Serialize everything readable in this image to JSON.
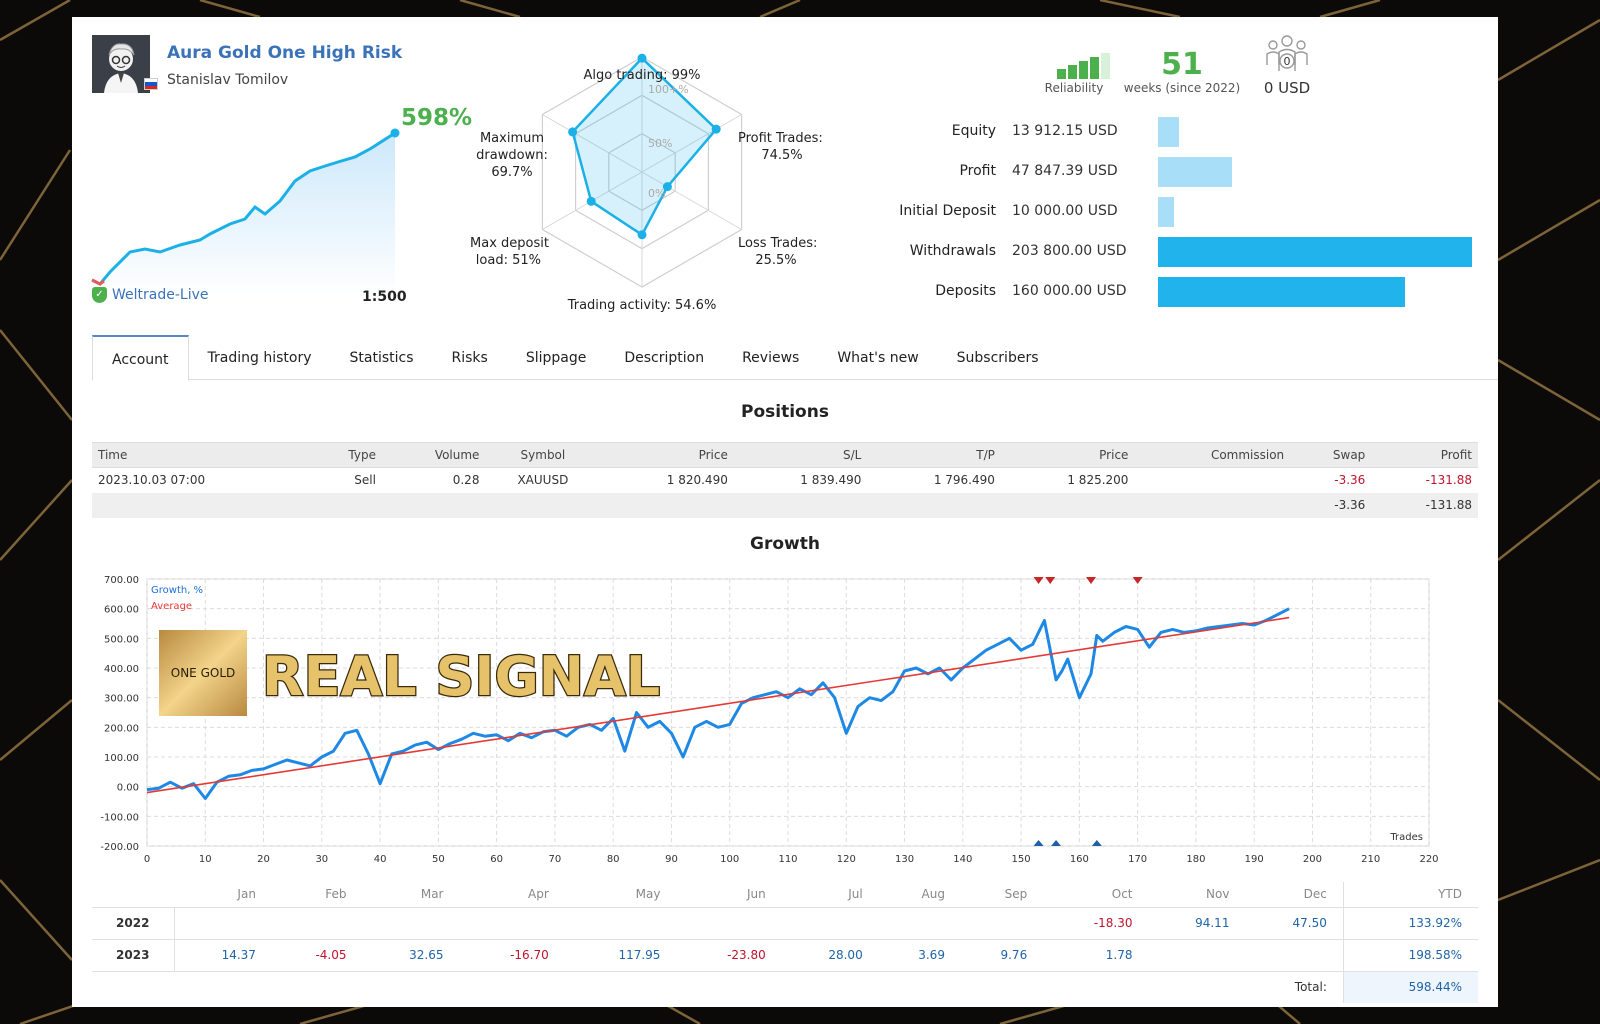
{
  "signal": {
    "name": "Aura Gold One High Risk",
    "author": "Stanislav Tomilov",
    "growth": "598%",
    "broker": "Weltrade-Live",
    "leverage": "1:500",
    "avatar_icon": "cartoon-avatar-icon",
    "flag_icon": "russia-flag-icon",
    "verified_icon": "shield-check-icon"
  },
  "radar": {
    "labels": {
      "algo": "Algo trading: 99%",
      "profit_l1": "Profit Trades:",
      "profit_l2": "74.5%",
      "loss_l1": "Loss Trades:",
      "loss_l2": "25.5%",
      "activity": "Trading activity: 54.6%",
      "load_l1": "Max deposit",
      "load_l2": "load: 51%",
      "dd_l1": "Maximum",
      "dd_l2": "drawdown:",
      "dd_l3": "69.7%"
    },
    "scale": {
      "full": "100+%",
      "half": "50%",
      "zero": "0%"
    },
    "values": [
      0.99,
      0.745,
      0.255,
      0.546,
      0.51,
      0.697
    ],
    "color": "#1bb0e8"
  },
  "reliability": {
    "label": "Reliability",
    "bars_filled": 4,
    "bars_total": 5
  },
  "weeks": {
    "value": "51",
    "label": "weeks (since 2022)"
  },
  "subscribers": {
    "count": "0",
    "usd": "0 USD",
    "icon": "subscribers-icon"
  },
  "stats": [
    {
      "label": "Equity",
      "value": "13 912.15 USD",
      "amount": 13912.15,
      "style": "light"
    },
    {
      "label": "Profit",
      "value": "47 847.39 USD",
      "amount": 47847.39,
      "style": "light"
    },
    {
      "label": "Initial Deposit",
      "value": "10 000.00 USD",
      "amount": 10000,
      "style": "light"
    },
    {
      "label": "Withdrawals",
      "value": "203 800.00 USD",
      "amount": 203800,
      "style": "dark"
    },
    {
      "label": "Deposits",
      "value": "160 000.00 USD",
      "amount": 160000,
      "style": "dark"
    }
  ],
  "tabs": [
    "Account",
    "Trading history",
    "Statistics",
    "Risks",
    "Slippage",
    "Description",
    "Reviews",
    "What's new",
    "Subscribers"
  ],
  "positions": {
    "title": "Positions",
    "headers": [
      "Time",
      "Type",
      "Volume",
      "Symbol",
      "Price",
      "S/L",
      "T/P",
      "Price",
      "Commission",
      "Swap",
      "Profit"
    ],
    "rows": [
      [
        "2023.10.03 07:00",
        "Sell",
        "0.28",
        "XAUUSD",
        "1 820.490",
        "1 839.490",
        "1 796.490",
        "1 825.200",
        "",
        "-3.36",
        "-131.88"
      ]
    ],
    "totals": {
      "swap": "-3.36",
      "profit": "-131.88"
    }
  },
  "growth": {
    "title": "Growth",
    "legend_growth": "Growth, %",
    "legend_average": "Average",
    "xlabel": "Trades",
    "overlay_logo": "ONE GOLD",
    "overlay_text": "REAL SIGNAL"
  },
  "chart_data": {
    "type": "line",
    "title": "Growth",
    "xlabel": "Trades",
    "ylabel": "",
    "xlim": [
      0,
      220
    ],
    "ylim": [
      -200,
      700
    ],
    "xticks": [
      0,
      10,
      20,
      30,
      40,
      50,
      60,
      70,
      80,
      90,
      100,
      110,
      120,
      130,
      140,
      150,
      160,
      170,
      180,
      190,
      200,
      210,
      220
    ],
    "yticks": [
      "700.00",
      "600.00",
      "500.00",
      "400.00",
      "300.00",
      "200.00",
      "100.00",
      "0.00",
      "-100.00",
      "-200.00"
    ],
    "grid": true,
    "series": [
      {
        "name": "Growth, %",
        "color": "#1e88e5",
        "x": [
          0,
          2,
          4,
          6,
          8,
          10,
          12,
          14,
          16,
          18,
          20,
          22,
          24,
          26,
          28,
          30,
          32,
          34,
          36,
          38,
          40,
          42,
          44,
          46,
          48,
          50,
          52,
          54,
          56,
          58,
          60,
          62,
          64,
          66,
          68,
          70,
          72,
          74,
          76,
          78,
          80,
          82,
          84,
          86,
          88,
          90,
          92,
          94,
          96,
          98,
          100,
          102,
          104,
          106,
          108,
          110,
          112,
          114,
          116,
          118,
          120,
          122,
          124,
          126,
          128,
          130,
          132,
          134,
          136,
          138,
          140,
          142,
          144,
          146,
          148,
          150,
          152,
          154,
          156,
          157,
          158,
          160,
          162,
          163,
          164,
          166,
          168,
          170,
          172,
          174,
          176,
          178,
          180,
          182,
          184,
          186,
          188,
          190,
          192,
          194,
          196
        ],
        "y": [
          -10,
          -5,
          15,
          -5,
          10,
          -40,
          15,
          35,
          40,
          55,
          60,
          75,
          90,
          80,
          70,
          100,
          120,
          180,
          190,
          110,
          10,
          110,
          120,
          140,
          150,
          125,
          145,
          160,
          180,
          170,
          175,
          155,
          180,
          165,
          185,
          190,
          170,
          200,
          210,
          190,
          230,
          120,
          250,
          200,
          220,
          180,
          100,
          200,
          220,
          200,
          210,
          280,
          300,
          310,
          320,
          300,
          330,
          310,
          350,
          300,
          180,
          270,
          300,
          290,
          320,
          390,
          400,
          380,
          400,
          360,
          400,
          430,
          460,
          480,
          500,
          460,
          480,
          560,
          360,
          390,
          430,
          300,
          380,
          510,
          490,
          520,
          540,
          530,
          470,
          520,
          530,
          520,
          525,
          535,
          540,
          545,
          550,
          545,
          560,
          580,
          600
        ]
      },
      {
        "name": "Average",
        "color": "#e53935",
        "x": [
          0,
          196
        ],
        "y": [
          -20,
          570
        ]
      }
    ],
    "markers": {
      "top_red_x": [
        153,
        155,
        162,
        170
      ],
      "bottom_blue_x": [
        153,
        156,
        163
      ]
    }
  },
  "monthly": {
    "months": [
      "Jan",
      "Feb",
      "Mar",
      "Apr",
      "May",
      "Jun",
      "Jul",
      "Aug",
      "Sep",
      "Oct",
      "Nov",
      "Dec"
    ],
    "ytd_label": "YTD",
    "rows": [
      {
        "year": "2022",
        "values": [
          "",
          "",
          "",
          "",
          "",
          "",
          "",
          "",
          "",
          "-18.30",
          "94.11",
          "47.50"
        ],
        "ytd": "133.92%"
      },
      {
        "year": "2023",
        "values": [
          "14.37",
          "-4.05",
          "32.65",
          "-16.70",
          "117.95",
          "-23.80",
          "28.00",
          "3.69",
          "9.76",
          "1.78",
          "",
          ""
        ],
        "ytd": "198.58%"
      }
    ],
    "total_label": "Total:",
    "total_value": "598.44%"
  }
}
